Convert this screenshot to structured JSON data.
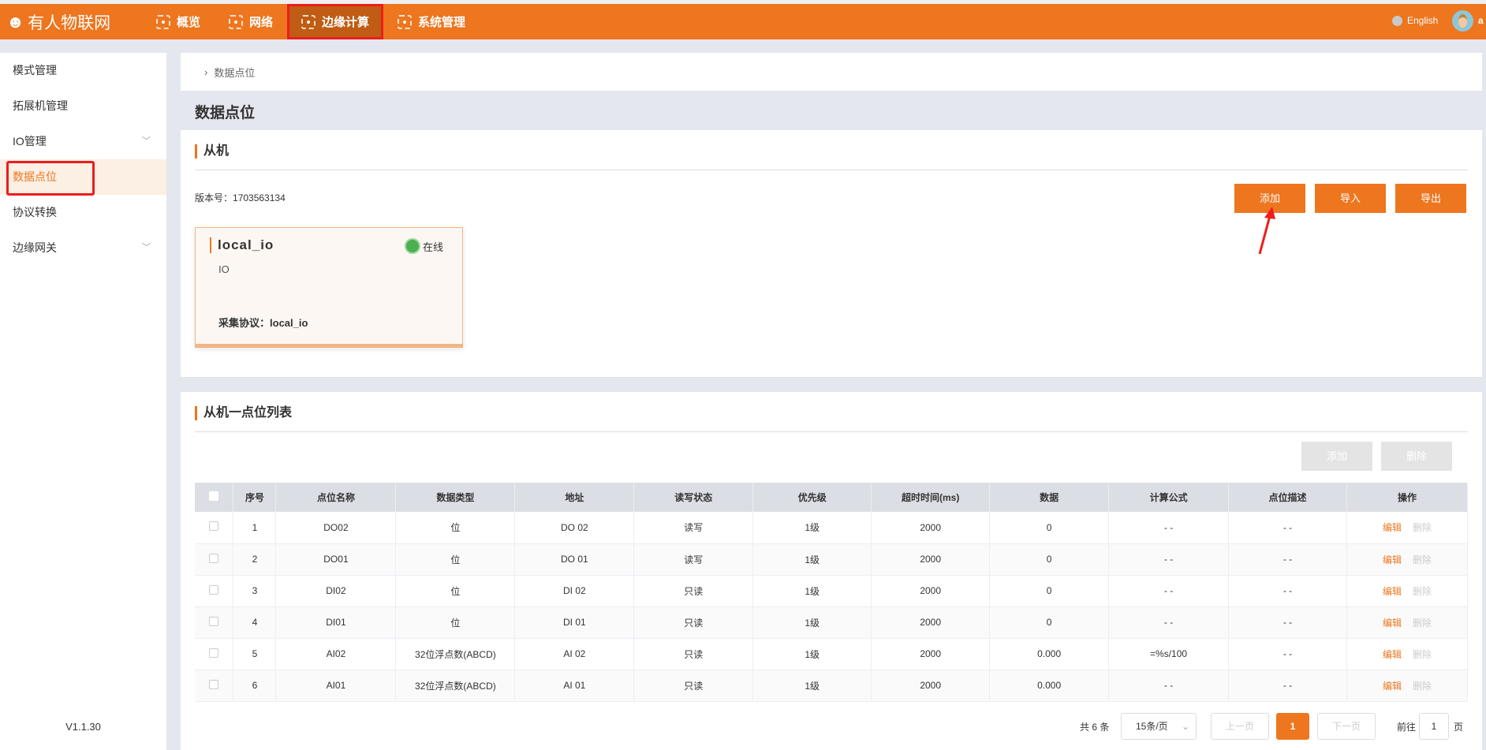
{
  "header": {
    "logo": "有人物联网",
    "nav": [
      {
        "label": "概览"
      },
      {
        "label": "网络"
      },
      {
        "label": "边缘计算"
      },
      {
        "label": "系统管理"
      }
    ],
    "language": "English",
    "user": "a"
  },
  "sidebar": {
    "items": [
      {
        "label": "模式管理"
      },
      {
        "label": "拓展机管理"
      },
      {
        "label": "IO管理"
      },
      {
        "label": "数据点位"
      },
      {
        "label": "协议转换"
      },
      {
        "label": "边缘网关"
      }
    ],
    "version": "V1.1.30"
  },
  "breadcrumb": "数据点位",
  "page_title": "数据点位",
  "slave": {
    "title": "从机",
    "version_label": "版本号：",
    "version": "1703563134",
    "add": "添加",
    "import": "导入",
    "export": "导出",
    "card": {
      "name": "local_io",
      "status": "在线",
      "type": "IO",
      "protocol_label": "采集协议：",
      "protocol": "local_io"
    }
  },
  "points": {
    "title": "从机一点位列表",
    "add": "添加",
    "delete": "删除",
    "columns": [
      "序号",
      "点位名称",
      "数据类型",
      "地址",
      "读写状态",
      "优先级",
      "超时时间(ms)",
      "数据",
      "计算公式",
      "点位描述",
      "操作"
    ],
    "rows": [
      [
        "1",
        "DO02",
        "位",
        "DO 02",
        "读写",
        "1级",
        "2000",
        "0",
        "- -",
        "- -"
      ],
      [
        "2",
        "DO01",
        "位",
        "DO 01",
        "读写",
        "1级",
        "2000",
        "0",
        "- -",
        "- -"
      ],
      [
        "3",
        "DI02",
        "位",
        "DI 02",
        "只读",
        "1级",
        "2000",
        "0",
        "- -",
        "- -"
      ],
      [
        "4",
        "DI01",
        "位",
        "DI 01",
        "只读",
        "1级",
        "2000",
        "0",
        "- -",
        "- -"
      ],
      [
        "5",
        "AI02",
        "32位浮点数(ABCD)",
        "AI 02",
        "只读",
        "1级",
        "2000",
        "0.000",
        "=%s/100",
        "- -"
      ],
      [
        "6",
        "AI01",
        "32位浮点数(ABCD)",
        "AI 01",
        "只读",
        "1级",
        "2000",
        "0.000",
        "- -",
        "- -"
      ]
    ],
    "edit": "编辑",
    "row_delete": "删除"
  },
  "pagination": {
    "total": "共 6 条",
    "page_size": "15条/页",
    "prev": "上一页",
    "current": "1",
    "next": "下一页",
    "goto": "前往",
    "goto_value": "1",
    "page_suffix": "页"
  },
  "colors": {
    "accent": "#ed761f",
    "highlight": "#ee1c1c",
    "online": "#4caf50"
  }
}
